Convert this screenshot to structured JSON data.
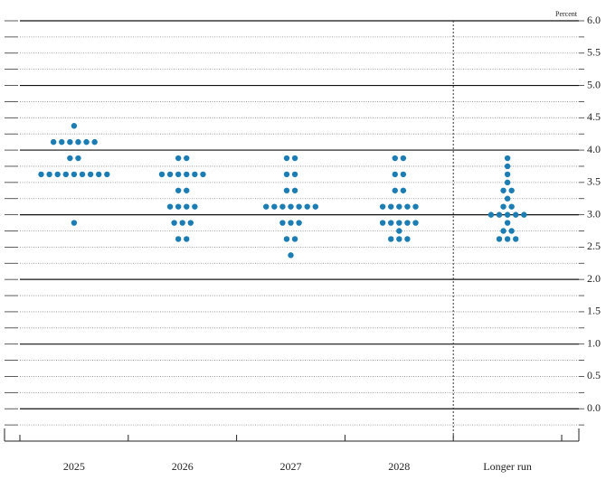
{
  "chart_data": {
    "type": "dot_plot",
    "y_unit_label": "Percent",
    "categories": [
      "2025",
      "2026",
      "2027",
      "2028",
      "Longer run"
    ],
    "values": [
      [
        4.375,
        4.125,
        4.125,
        4.125,
        4.125,
        4.125,
        4.125,
        3.875,
        3.875,
        3.625,
        3.625,
        3.625,
        3.625,
        3.625,
        3.625,
        3.625,
        3.625,
        3.625,
        2.875
      ],
      [
        3.875,
        3.875,
        3.625,
        3.625,
        3.625,
        3.625,
        3.625,
        3.625,
        3.375,
        3.375,
        3.125,
        3.125,
        3.125,
        3.125,
        2.875,
        2.875,
        2.875,
        2.625,
        2.625
      ],
      [
        3.875,
        3.875,
        3.625,
        3.625,
        3.375,
        3.375,
        3.125,
        3.125,
        3.125,
        3.125,
        3.125,
        3.125,
        3.125,
        2.875,
        2.875,
        2.875,
        2.625,
        2.625,
        2.375
      ],
      [
        3.875,
        3.875,
        3.625,
        3.625,
        3.375,
        3.375,
        3.125,
        3.125,
        3.125,
        3.125,
        3.125,
        2.875,
        2.875,
        2.875,
        2.875,
        2.875,
        2.75,
        2.625,
        2.625,
        2.625
      ],
      [
        3.875,
        3.75,
        3.625,
        3.5,
        3.375,
        3.375,
        3.25,
        3.125,
        3.125,
        3.0,
        3.0,
        3.0,
        3.0,
        3.0,
        2.875,
        2.75,
        2.75,
        2.625,
        2.625,
        2.625
      ]
    ],
    "color": "#1b7db3",
    "ylim": [
      -0.5,
      6.0
    ],
    "yticks": [
      {
        "value": 0,
        "label": "0.0"
      },
      0.5,
      {
        "value": 1,
        "label": "1.0"
      },
      1.5,
      {
        "value": 2,
        "label": "2.0"
      },
      2.5,
      {
        "value": 3,
        "label": "3.0"
      },
      3.5,
      {
        "value": 4,
        "label": "4.0"
      },
      4.5,
      {
        "value": 5,
        "label": "5.0"
      },
      5.5,
      {
        "value": 6,
        "label": "6.0"
      }
    ],
    "minor_yticks": [
      -0.25,
      0.25,
      0.75,
      1.25,
      1.75,
      2.25,
      2.75,
      3.25,
      3.75,
      4.25,
      4.75,
      5.25,
      5.75
    ],
    "grid": true
  }
}
